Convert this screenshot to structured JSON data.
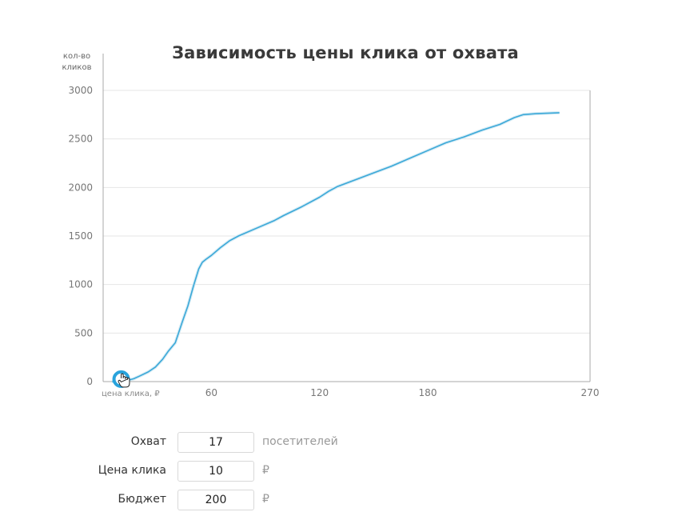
{
  "chart_data": {
    "type": "line",
    "title": "Зависимость цены клика от охвата",
    "ylabel_line1": "кол-во",
    "ylabel_line2": "кликов",
    "xlabel": "цена клика, ₽",
    "xlim": [
      0,
      270
    ],
    "ylim": [
      0,
      3000
    ],
    "x_ticks": [
      60,
      120,
      180,
      270
    ],
    "y_ticks": [
      0,
      500,
      1000,
      1500,
      2000,
      2500,
      3000
    ],
    "grid": true,
    "line_color": "#3aa8d8",
    "marker": {
      "x": 10,
      "y": 17
    },
    "series": [
      {
        "x": [
          5,
          10,
          13,
          17,
          20,
          25,
          29,
          33,
          36,
          40,
          44,
          47,
          50,
          53,
          55,
          57,
          60,
          65,
          70,
          75,
          85,
          95,
          100,
          110,
          120,
          125,
          130,
          140,
          150,
          160,
          170,
          180,
          190,
          200,
          210,
          220,
          228,
          233,
          240,
          253
        ],
        "y": [
          0,
          0,
          10,
          30,
          55,
          100,
          150,
          230,
          310,
          400,
          620,
          780,
          980,
          1160,
          1230,
          1260,
          1300,
          1380,
          1450,
          1500,
          1580,
          1660,
          1710,
          1800,
          1900,
          1960,
          2010,
          2080,
          2150,
          2220,
          2300,
          2380,
          2460,
          2520,
          2590,
          2650,
          2720,
          2750,
          2760,
          2770
        ]
      }
    ]
  },
  "form": {
    "reach_label": "Охват",
    "reach_value": "17",
    "reach_unit": "посетителей",
    "price_label": "Цена клика",
    "price_value": "10",
    "price_unit": "₽",
    "budget_label": "Бюджет",
    "budget_value": "200",
    "budget_unit": "₽"
  }
}
